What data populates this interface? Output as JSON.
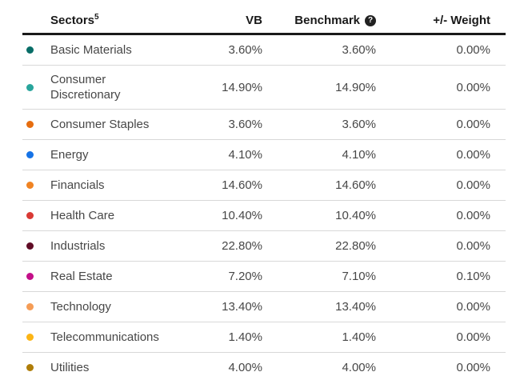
{
  "table": {
    "columns": {
      "sector": "Sectors",
      "sector_footnote": "5",
      "vb": "VB",
      "benchmark": "Benchmark",
      "benchmark_help_icon": "?",
      "weight": "+/- Weight"
    },
    "rows": [
      {
        "sector": "Basic Materials",
        "dot_color": "#086D67",
        "vb": "3.60%",
        "benchmark": "3.60%",
        "weight": "0.00%"
      },
      {
        "sector": "Consumer Discretionary",
        "dot_color": "#29A59C",
        "vb": "14.90%",
        "benchmark": "14.90%",
        "weight": "0.00%"
      },
      {
        "sector": "Consumer Staples",
        "dot_color": "#E66D0F",
        "vb": "3.60%",
        "benchmark": "3.60%",
        "weight": "0.00%"
      },
      {
        "sector": "Energy",
        "dot_color": "#1673E6",
        "vb": "4.10%",
        "benchmark": "4.10%",
        "weight": "0.00%"
      },
      {
        "sector": "Financials",
        "dot_color": "#F08322",
        "vb": "14.60%",
        "benchmark": "14.60%",
        "weight": "0.00%"
      },
      {
        "sector": "Health Care",
        "dot_color": "#D93A35",
        "vb": "10.40%",
        "benchmark": "10.40%",
        "weight": "0.00%"
      },
      {
        "sector": "Industrials",
        "dot_color": "#600C26",
        "vb": "22.80%",
        "benchmark": "22.80%",
        "weight": "0.00%"
      },
      {
        "sector": "Real Estate",
        "dot_color": "#C40F89",
        "vb": "7.20%",
        "benchmark": "7.10%",
        "weight": "0.10%"
      },
      {
        "sector": "Technology",
        "dot_color": "#F59C55",
        "vb": "13.40%",
        "benchmark": "13.40%",
        "weight": "0.00%"
      },
      {
        "sector": "Telecommunications",
        "dot_color": "#FCB515",
        "vb": "1.40%",
        "benchmark": "1.40%",
        "weight": "0.00%"
      },
      {
        "sector": "Utilities",
        "dot_color": "#AF7D08",
        "vb": "4.00%",
        "benchmark": "4.00%",
        "weight": "0.00%"
      }
    ]
  },
  "colors": {
    "header_text": "#1A1A1A",
    "body_text": "#474747",
    "row_divider": "#D8D8D8",
    "header_rule": "#1A1A1A",
    "help_icon_bg": "#212121"
  }
}
